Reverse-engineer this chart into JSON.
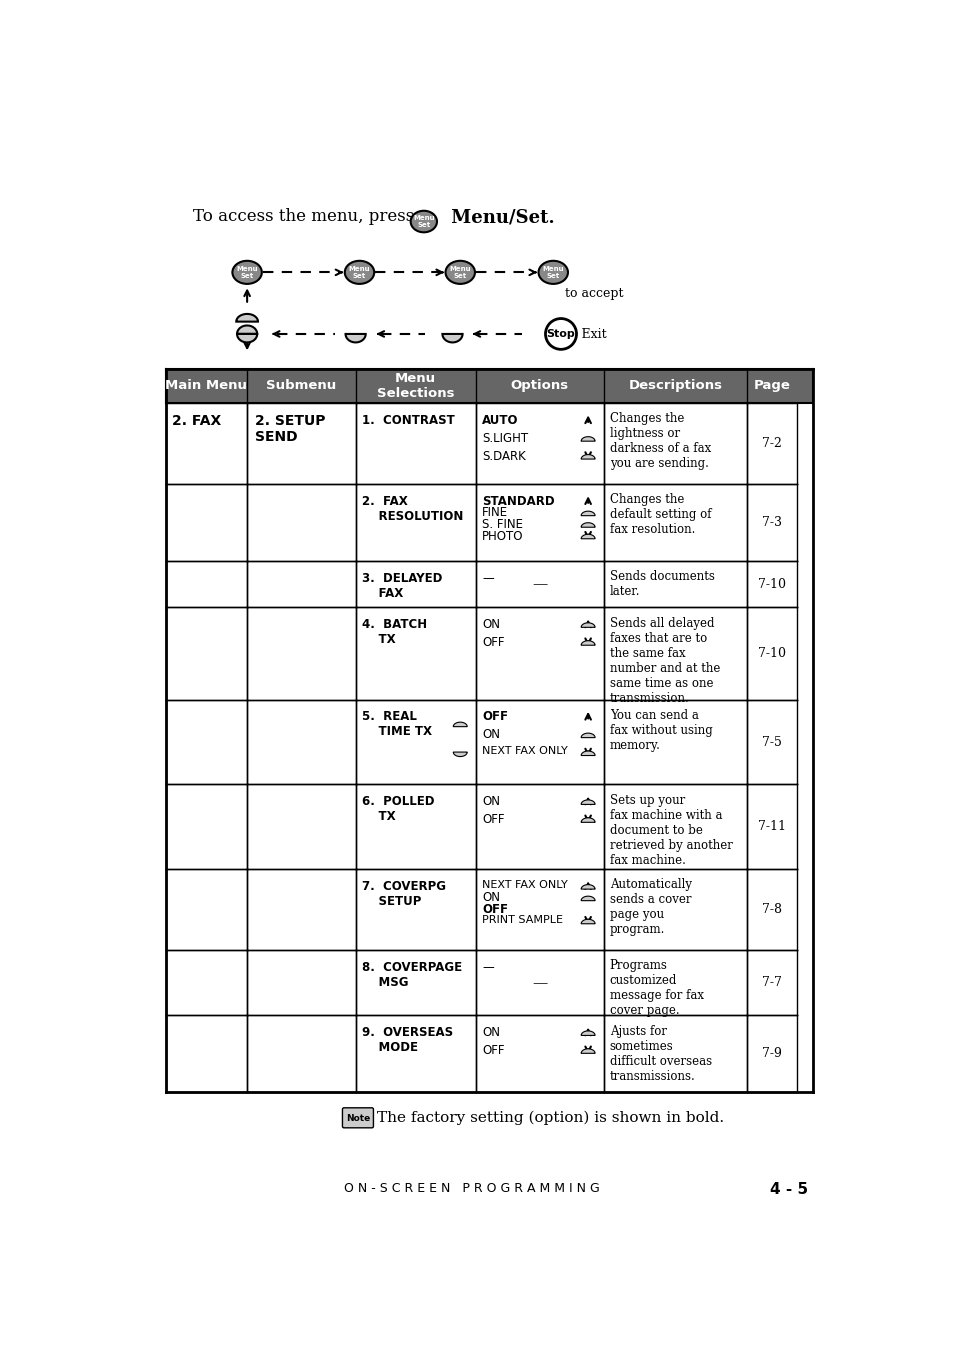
{
  "title_text": "To access the menu, press",
  "title_bold": "Menu/Set.",
  "bg_color": "#ffffff",
  "header_bg": "#666666",
  "header_text_color": "#ffffff",
  "table_border_color": "#000000",
  "header_cols": [
    "Main Menu",
    "Submenu",
    "Menu\nSelections",
    "Options",
    "Descriptions",
    "Page"
  ],
  "rows": [
    {
      "main": "2. FAX",
      "sub": "2. SETUP\nSEND",
      "sel": "1.  CONTRAST",
      "opts": "AUTO\n\nS.LIGHT\n\nS.DARK",
      "desc": "Changes the\nlightness or\ndarkness of a fax\nyou are sending.",
      "page": "7-2"
    },
    {
      "main": "",
      "sub": "",
      "sel": "2.  FAX\n    RESOLUTION",
      "opts": "STANDARD\nFINE\nS. FINE\nPHOTO",
      "desc": "Changes the\ndefault setting of\nfax resolution.",
      "page": "7-3"
    },
    {
      "main": "",
      "sub": "",
      "sel": "3.  DELAYED\n    FAX",
      "opts": "—",
      "desc": "Sends documents\nlater.",
      "page": "7-10"
    },
    {
      "main": "",
      "sub": "",
      "sel": "4.  BATCH\n    TX",
      "opts": "ON\n\nOFF",
      "desc": "Sends all delayed\nfaxes that are to\nthe same fax\nnumber and at the\nsame time as one\ntransmission.",
      "page": "7-10"
    },
    {
      "main": "",
      "sub": "",
      "sel": "5.  REAL\n    TIME TX",
      "opts": "OFF\n\nON\n\nNEXT FAX ONLY",
      "desc": "You can send a\nfax without using\nmemory.",
      "page": "7-5"
    },
    {
      "main": "",
      "sub": "",
      "sel": "6.  POLLED\n    TX",
      "opts": "ON\n\nOFF",
      "desc": "Sets up your\nfax machine with a\ndocument to be\nretrieved by another\nfax machine.",
      "page": "7-11"
    },
    {
      "main": "",
      "sub": "",
      "sel": "7.  COVERPG\n    SETUP",
      "opts": "NEXT FAX ONLY\nON\nOFF\nPRINT SAMPLE",
      "desc": "Automatically\nsends a cover\npage you\nprogram.",
      "page": "7-8"
    },
    {
      "main": "",
      "sub": "",
      "sel": "8.  COVERPAGE\n    MSG",
      "opts": "—",
      "desc": "Programs\ncustomized\nmessage for fax\ncover page.",
      "page": "7-7"
    },
    {
      "main": "",
      "sub": "",
      "sel": "9.  OVERSEAS\n    MODE",
      "opts": "ON\n\nOFF",
      "desc": "Ajusts for\nsometimes\ndifficult overseas\ntransmissions.",
      "page": "7-9"
    }
  ],
  "bold_opts": [
    [
      0
    ],
    [
      0
    ],
    [],
    [
      2
    ],
    [
      0
    ],
    [
      2
    ],
    [
      2
    ],
    [],
    [
      2
    ]
  ],
  "note_text": "The factory setting (option) is shown in bold.",
  "footer_text": "O N - S C R E E N   P R O G R A M M I N G",
  "footer_page": "4 - 5"
}
